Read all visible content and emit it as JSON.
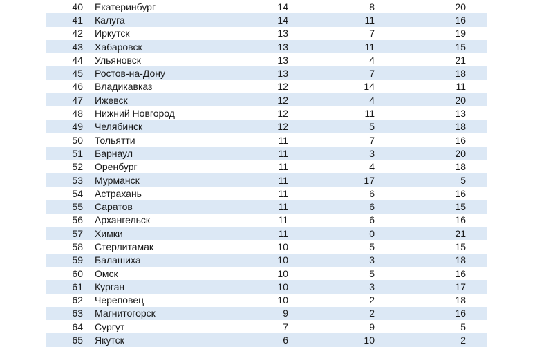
{
  "colors": {
    "row_band": "#DCE8F5",
    "text": "#1a1a1a",
    "background": "#ffffff"
  },
  "table": {
    "columns": [
      "rank",
      "city",
      "v1",
      "v2",
      "v3"
    ],
    "rows": [
      {
        "rank": "40",
        "city": "Екатеринбург",
        "v1": "14",
        "v2": "8",
        "v3": "20"
      },
      {
        "rank": "41",
        "city": "Калуга",
        "v1": "14",
        "v2": "11",
        "v3": "16"
      },
      {
        "rank": "42",
        "city": "Иркутск",
        "v1": "13",
        "v2": "7",
        "v3": "19"
      },
      {
        "rank": "43",
        "city": "Хабаровск",
        "v1": "13",
        "v2": "11",
        "v3": "15"
      },
      {
        "rank": "44",
        "city": "Ульяновск",
        "v1": "13",
        "v2": "4",
        "v3": "21"
      },
      {
        "rank": "45",
        "city": "Ростов-на-Дону",
        "v1": "13",
        "v2": "7",
        "v3": "18"
      },
      {
        "rank": "46",
        "city": "Владикавказ",
        "v1": "12",
        "v2": "14",
        "v3": "11"
      },
      {
        "rank": "47",
        "city": "Ижевск",
        "v1": "12",
        "v2": "4",
        "v3": "20"
      },
      {
        "rank": "48",
        "city": "Нижний Новгород",
        "v1": "12",
        "v2": "11",
        "v3": "13"
      },
      {
        "rank": "49",
        "city": "Челябинск",
        "v1": "12",
        "v2": "5",
        "v3": "18"
      },
      {
        "rank": "50",
        "city": "Тольятти",
        "v1": "11",
        "v2": "7",
        "v3": "16"
      },
      {
        "rank": "51",
        "city": "Барнаул",
        "v1": "11",
        "v2": "3",
        "v3": "20"
      },
      {
        "rank": "52",
        "city": "Оренбург",
        "v1": "11",
        "v2": "4",
        "v3": "18"
      },
      {
        "rank": "53",
        "city": "Мурманск",
        "v1": "11",
        "v2": "17",
        "v3": "5"
      },
      {
        "rank": "54",
        "city": "Астрахань",
        "v1": "11",
        "v2": "6",
        "v3": "16"
      },
      {
        "rank": "55",
        "city": "Саратов",
        "v1": "11",
        "v2": "6",
        "v3": "15"
      },
      {
        "rank": "56",
        "city": "Архангельск",
        "v1": "11",
        "v2": "6",
        "v3": "16"
      },
      {
        "rank": "57",
        "city": "Химки",
        "v1": "11",
        "v2": "0",
        "v3": "21"
      },
      {
        "rank": "58",
        "city": "Стерлитамак",
        "v1": "10",
        "v2": "5",
        "v3": "15"
      },
      {
        "rank": "59",
        "city": "Балашиха",
        "v1": "10",
        "v2": "3",
        "v3": "18"
      },
      {
        "rank": "60",
        "city": "Омск",
        "v1": "10",
        "v2": "5",
        "v3": "16"
      },
      {
        "rank": "61",
        "city": "Курган",
        "v1": "10",
        "v2": "3",
        "v3": "17"
      },
      {
        "rank": "62",
        "city": "Череповец",
        "v1": "10",
        "v2": "2",
        "v3": "18"
      },
      {
        "rank": "63",
        "city": "Магнитогорск",
        "v1": "9",
        "v2": "2",
        "v3": "16"
      },
      {
        "rank": "64",
        "city": "Сургут",
        "v1": "7",
        "v2": "9",
        "v3": "5"
      },
      {
        "rank": "65",
        "city": "Якутск",
        "v1": "6",
        "v2": "10",
        "v3": "2"
      }
    ]
  }
}
